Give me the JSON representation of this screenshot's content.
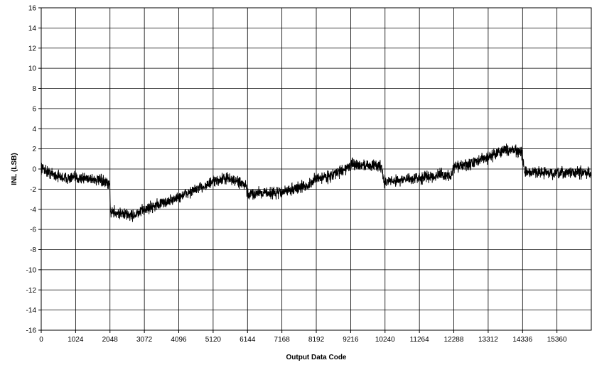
{
  "chart_data": {
    "type": "line",
    "title": "",
    "xlabel": "Output Data Code",
    "ylabel": "INL (LSB)",
    "xlim": [
      0,
      16383
    ],
    "ylim": [
      -16,
      16
    ],
    "x_ticks": [
      0,
      1024,
      2048,
      3072,
      4096,
      5120,
      6144,
      7168,
      8192,
      9216,
      10240,
      11264,
      12288,
      13312,
      14336,
      15360
    ],
    "x_tick_labels": [
      "0",
      "1024",
      "2048",
      "3072",
      "4096",
      "5120",
      "6144",
      "7168",
      "8192",
      "9216",
      "10240",
      "11264",
      "12288",
      "13312",
      "14336",
      "15360"
    ],
    "y_ticks": [
      -16,
      -14,
      -12,
      -10,
      -8,
      -6,
      -4,
      -2,
      0,
      2,
      4,
      6,
      8,
      10,
      12,
      14,
      16
    ],
    "y_tick_labels": [
      "-16",
      "-14",
      "-12",
      "-10",
      "-8",
      "-6",
      "-4",
      "-2",
      "0",
      "2",
      "4",
      "6",
      "8",
      "10",
      "12",
      "14",
      "16"
    ],
    "grid": true,
    "series": [
      {
        "color": "#000000",
        "x": [
          0,
          200,
          400,
          700,
          1024,
          1400,
          1800,
          2040,
          2060,
          2200,
          2500,
          2800,
          3072,
          3400,
          3800,
          4096,
          4500,
          5120,
          5500,
          5900,
          6100,
          6150,
          6500,
          7000,
          7168,
          7600,
          8000,
          8192,
          8600,
          9000,
          9216,
          9600,
          10150,
          10200,
          10600,
          11000,
          11264,
          11800,
          12200,
          12288,
          12700,
          13000,
          13312,
          13700,
          14000,
          14300,
          14330,
          14400,
          14800,
          15360,
          15800,
          16383
        ],
        "y": [
          0.2,
          -0.3,
          -0.6,
          -0.9,
          -0.9,
          -0.9,
          -1.2,
          -1.6,
          -4.2,
          -4.3,
          -4.5,
          -4.6,
          -4.0,
          -3.6,
          -3.2,
          -2.8,
          -2.2,
          -1.3,
          -0.9,
          -1.3,
          -1.8,
          -2.6,
          -2.3,
          -2.4,
          -2.3,
          -1.9,
          -1.6,
          -0.9,
          -0.7,
          -0.1,
          0.4,
          0.4,
          0.3,
          -1.3,
          -1.1,
          -1.0,
          -0.9,
          -0.6,
          -0.7,
          0.2,
          0.4,
          0.8,
          1.2,
          1.8,
          2.0,
          1.6,
          1.3,
          -0.4,
          -0.3,
          -0.5,
          -0.3,
          -0.4
        ]
      }
    ]
  }
}
